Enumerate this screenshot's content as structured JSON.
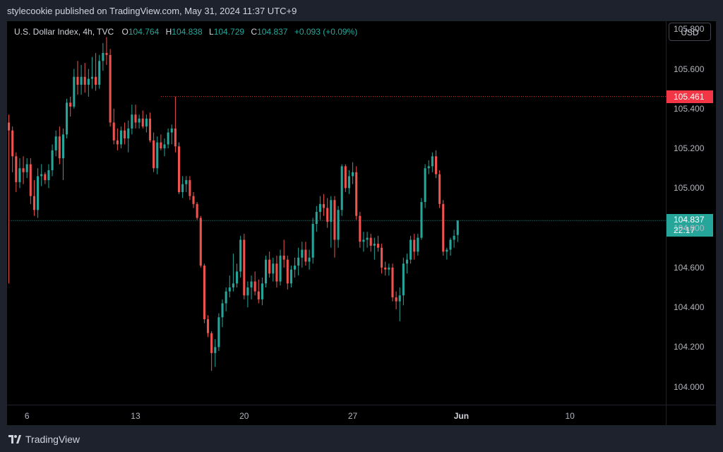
{
  "published_line": "stylecookie published on TradingView.com, May 31, 2024 11:37 UTC+9",
  "legend": {
    "symbol": "U.S. Dollar Index, 4h, TVC",
    "o_label": "O",
    "o_value": "104.764",
    "h_label": "H",
    "h_value": "104.838",
    "l_label": "L",
    "l_value": "104.729",
    "c_label": "C",
    "c_value": "104.837",
    "change": "+0.093 (+0.09%)"
  },
  "currency_button": "USD",
  "price_badge_red": "105.461",
  "price_badge_last": "104.837",
  "price_badge_countdown": "22:17",
  "brand": "TradingView",
  "colors": {
    "up": "#26a69a",
    "down": "#ef5350",
    "background": "#000000",
    "frame": "#1e222d",
    "red_line": "#f23645"
  },
  "chart_data": {
    "type": "candlestick",
    "title": "U.S. Dollar Index, 4h, TVC",
    "y_ticks": [
      "105.800",
      "105.600",
      "105.400",
      "105.200",
      "105.000",
      "104.800",
      "104.600",
      "104.400",
      "104.200",
      "104.000"
    ],
    "ylim": [
      103.91,
      105.84
    ],
    "x_ticks": [
      {
        "label": "6",
        "bar": 5,
        "bold": false
      },
      {
        "label": "13",
        "bar": 35,
        "bold": false
      },
      {
        "label": "20",
        "bar": 65,
        "bold": false
      },
      {
        "label": "27",
        "bar": 95,
        "bold": false
      },
      {
        "label": "Jun",
        "bar": 125,
        "bold": true
      },
      {
        "label": "10",
        "bar": 155,
        "bold": false
      }
    ],
    "total_slots": 182,
    "horizontal_lines": [
      {
        "value": 105.461,
        "color": "#f23645",
        "from_bar": 42
      },
      {
        "value": 104.837,
        "color": "#26a69a",
        "from_bar": 0
      }
    ],
    "grid": false,
    "ohlc": [
      [
        105.33,
        105.37,
        104.52,
        105.29
      ],
      [
        105.29,
        105.31,
        105.08,
        105.16
      ],
      [
        105.16,
        105.18,
        104.98,
        105.03
      ],
      [
        105.03,
        105.15,
        105.0,
        105.1
      ],
      [
        105.1,
        105.16,
        105.02,
        105.08
      ],
      [
        105.08,
        105.15,
        105.05,
        105.12
      ],
      [
        105.12,
        105.15,
        104.92,
        104.96
      ],
      [
        104.96,
        105.04,
        104.86,
        104.89
      ],
      [
        104.89,
        105.1,
        104.85,
        105.06
      ],
      [
        105.06,
        105.12,
        105.01,
        105.07
      ],
      [
        105.07,
        105.08,
        105.02,
        105.04
      ],
      [
        105.04,
        105.12,
        105.0,
        105.09
      ],
      [
        105.09,
        105.22,
        105.06,
        105.19
      ],
      [
        105.19,
        105.29,
        105.16,
        105.26
      ],
      [
        105.26,
        105.31,
        105.12,
        105.15
      ],
      [
        105.15,
        105.3,
        105.04,
        105.27
      ],
      [
        105.27,
        105.45,
        105.25,
        105.43
      ],
      [
        105.43,
        105.46,
        105.36,
        105.41
      ],
      [
        105.41,
        105.6,
        105.4,
        105.56
      ],
      [
        105.56,
        105.64,
        105.47,
        105.52
      ],
      [
        105.52,
        105.62,
        105.47,
        105.56
      ],
      [
        105.56,
        105.63,
        105.48,
        105.52
      ],
      [
        105.52,
        105.6,
        105.46,
        105.55
      ],
      [
        105.55,
        105.66,
        105.5,
        105.56
      ],
      [
        105.56,
        105.68,
        105.49,
        105.52
      ],
      [
        105.52,
        105.67,
        105.5,
        105.64
      ],
      [
        105.64,
        105.73,
        105.59,
        105.68
      ],
      [
        105.68,
        105.76,
        105.62,
        105.67
      ],
      [
        105.67,
        105.7,
        105.31,
        105.33
      ],
      [
        105.33,
        105.4,
        105.22,
        105.24
      ],
      [
        105.24,
        105.3,
        105.19,
        105.22
      ],
      [
        105.22,
        105.31,
        105.2,
        105.29
      ],
      [
        105.29,
        105.33,
        105.22,
        105.25
      ],
      [
        105.25,
        105.34,
        105.18,
        105.3
      ],
      [
        105.3,
        105.42,
        105.27,
        105.37
      ],
      [
        105.37,
        105.42,
        105.3,
        105.33
      ],
      [
        105.33,
        105.37,
        105.3,
        105.35
      ],
      [
        105.35,
        105.39,
        105.3,
        105.31
      ],
      [
        105.31,
        105.37,
        105.28,
        105.35
      ],
      [
        105.35,
        105.38,
        105.23,
        105.24
      ],
      [
        105.24,
        105.28,
        105.08,
        105.1
      ],
      [
        105.1,
        105.26,
        105.07,
        105.23
      ],
      [
        105.23,
        105.27,
        105.19,
        105.2
      ],
      [
        105.2,
        105.25,
        105.16,
        105.22
      ],
      [
        105.22,
        105.3,
        105.2,
        105.28
      ],
      [
        105.28,
        105.32,
        105.22,
        105.3
      ],
      [
        105.3,
        105.46,
        105.18,
        105.21
      ],
      [
        105.21,
        105.23,
        104.97,
        104.98
      ],
      [
        104.98,
        105.06,
        104.95,
        105.02
      ],
      [
        105.02,
        105.06,
        104.98,
        105.04
      ],
      [
        105.04,
        105.06,
        104.94,
        104.96
      ],
      [
        104.96,
        104.98,
        104.9,
        104.92
      ],
      [
        104.92,
        104.93,
        104.84,
        104.85
      ],
      [
        104.85,
        104.86,
        104.6,
        104.61
      ],
      [
        104.61,
        104.62,
        104.32,
        104.34
      ],
      [
        104.34,
        104.36,
        104.25,
        104.27
      ],
      [
        104.27,
        104.28,
        104.08,
        104.17
      ],
      [
        104.17,
        104.24,
        104.1,
        104.2
      ],
      [
        104.2,
        104.37,
        104.18,
        104.35
      ],
      [
        104.35,
        104.44,
        104.3,
        104.42
      ],
      [
        104.42,
        104.5,
        104.38,
        104.48
      ],
      [
        104.48,
        104.56,
        104.45,
        104.5
      ],
      [
        104.5,
        104.67,
        104.48,
        104.52
      ],
      [
        104.52,
        104.62,
        104.5,
        104.58
      ],
      [
        104.58,
        104.76,
        104.55,
        104.74
      ],
      [
        104.74,
        104.77,
        104.44,
        104.46
      ],
      [
        104.46,
        104.53,
        104.4,
        104.5
      ],
      [
        104.5,
        104.56,
        104.44,
        104.53
      ],
      [
        104.53,
        104.58,
        104.46,
        104.48
      ],
      [
        104.48,
        104.54,
        104.42,
        104.44
      ],
      [
        104.44,
        104.55,
        104.41,
        104.52
      ],
      [
        104.52,
        104.66,
        104.5,
        104.64
      ],
      [
        104.64,
        104.68,
        104.55,
        104.57
      ],
      [
        104.57,
        104.65,
        104.53,
        104.62
      ],
      [
        104.62,
        104.66,
        104.5,
        104.53
      ],
      [
        104.53,
        104.69,
        104.51,
        104.66
      ],
      [
        104.66,
        104.74,
        104.6,
        104.64
      ],
      [
        104.64,
        104.66,
        104.49,
        104.52
      ],
      [
        104.52,
        104.61,
        104.5,
        104.59
      ],
      [
        104.59,
        104.65,
        104.55,
        104.61
      ],
      [
        104.61,
        104.7,
        104.56,
        104.65
      ],
      [
        104.65,
        104.73,
        104.6,
        104.69
      ],
      [
        104.69,
        104.73,
        104.61,
        104.63
      ],
      [
        104.63,
        104.69,
        104.59,
        104.65
      ],
      [
        104.65,
        104.85,
        104.62,
        104.82
      ],
      [
        104.82,
        104.91,
        104.78,
        104.88
      ],
      [
        104.88,
        104.96,
        104.84,
        104.92
      ],
      [
        104.92,
        104.97,
        104.86,
        104.9
      ],
      [
        104.9,
        104.95,
        104.8,
        104.83
      ],
      [
        104.83,
        104.96,
        104.7,
        104.94
      ],
      [
        104.94,
        104.96,
        104.65,
        104.74
      ],
      [
        104.74,
        104.91,
        104.7,
        104.89
      ],
      [
        104.89,
        105.12,
        104.86,
        105.11
      ],
      [
        105.11,
        105.12,
        104.98,
        105.0
      ],
      [
        105.0,
        105.09,
        104.97,
        105.06
      ],
      [
        105.06,
        105.13,
        105.02,
        105.08
      ],
      [
        105.08,
        105.11,
        104.84,
        104.86
      ],
      [
        104.86,
        104.88,
        104.7,
        104.73
      ],
      [
        104.73,
        104.78,
        104.68,
        104.74
      ],
      [
        104.74,
        104.78,
        104.7,
        104.75
      ],
      [
        104.75,
        104.77,
        104.68,
        104.71
      ],
      [
        104.71,
        104.75,
        104.64,
        104.72
      ],
      [
        104.72,
        104.76,
        104.68,
        104.7
      ],
      [
        104.7,
        104.72,
        104.57,
        104.6
      ],
      [
        104.6,
        104.63,
        104.56,
        104.59
      ],
      [
        104.59,
        104.62,
        104.56,
        104.6
      ],
      [
        104.6,
        104.62,
        104.43,
        104.45
      ],
      [
        104.45,
        104.48,
        104.39,
        104.43
      ],
      [
        104.43,
        104.5,
        104.33,
        104.46
      ],
      [
        104.46,
        104.65,
        104.41,
        104.62
      ],
      [
        104.62,
        104.67,
        104.57,
        104.64
      ],
      [
        104.64,
        104.76,
        104.62,
        104.74
      ],
      [
        104.74,
        104.77,
        104.64,
        104.68
      ],
      [
        104.68,
        104.77,
        104.66,
        104.75
      ],
      [
        104.75,
        104.95,
        104.74,
        104.93
      ],
      [
        104.93,
        105.12,
        104.9,
        105.1
      ],
      [
        105.1,
        105.14,
        105.07,
        105.11
      ],
      [
        105.11,
        105.18,
        105.08,
        105.16
      ],
      [
        105.16,
        105.19,
        105.05,
        105.07
      ],
      [
        105.07,
        105.09,
        104.9,
        104.92
      ],
      [
        104.92,
        104.94,
        104.66,
        104.68
      ],
      [
        104.68,
        104.7,
        104.64,
        104.69
      ],
      [
        104.69,
        104.75,
        104.66,
        104.74
      ],
      [
        104.74,
        104.79,
        104.7,
        104.76
      ],
      [
        104.764,
        104.838,
        104.729,
        104.837
      ]
    ]
  }
}
